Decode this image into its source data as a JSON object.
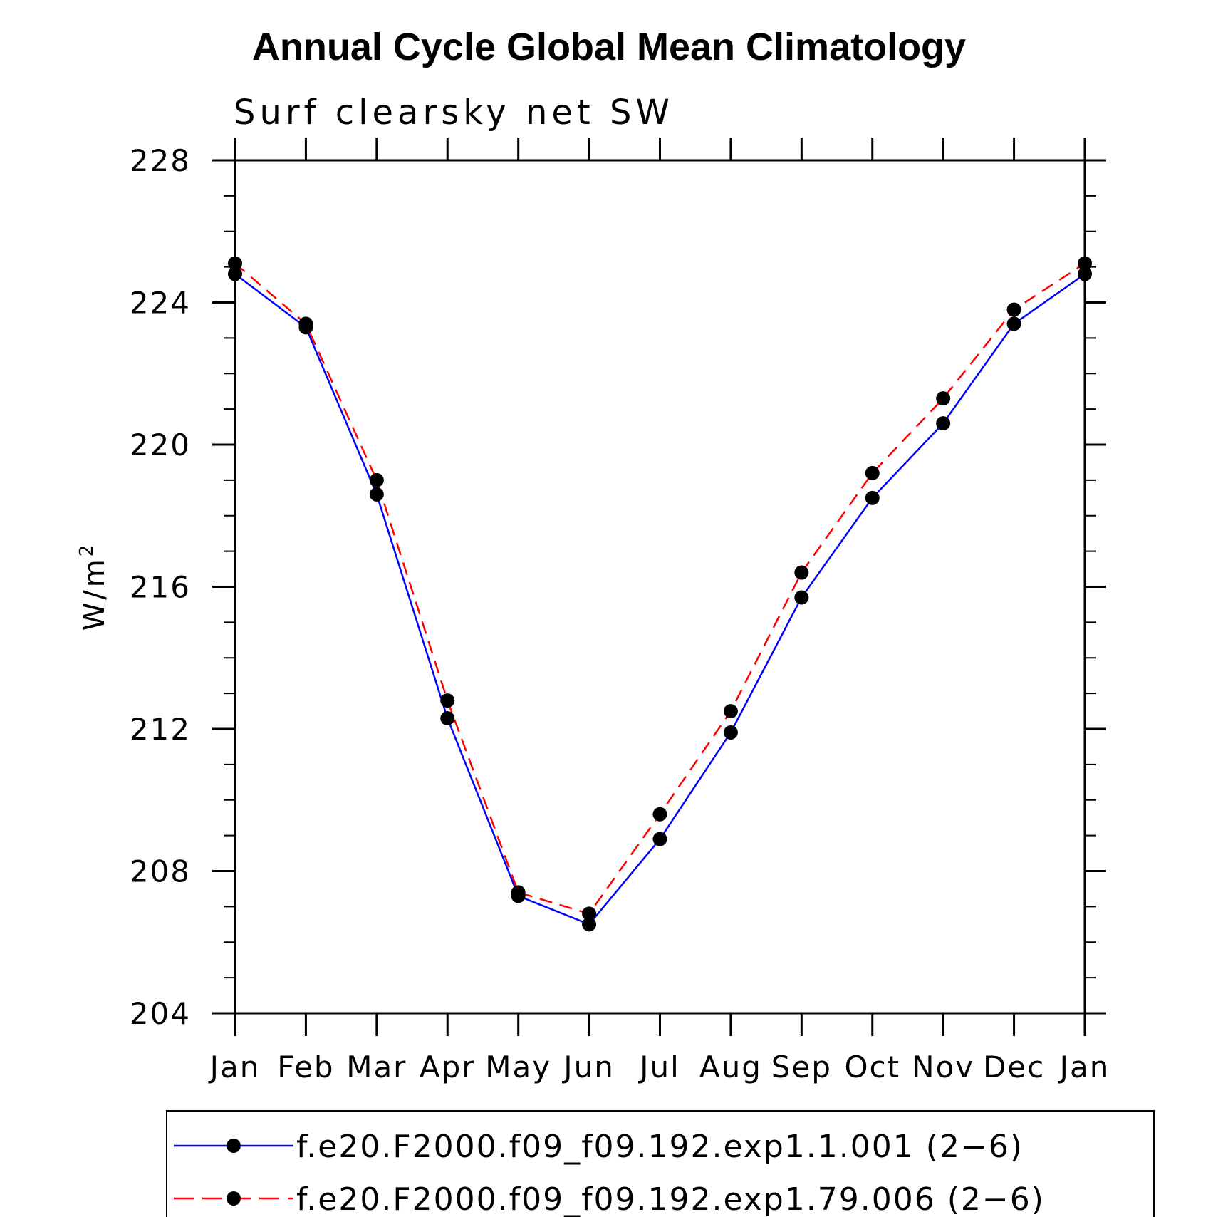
{
  "chart_data": {
    "type": "line",
    "title": "Annual Cycle Global Mean Climatology",
    "subtitle": "Surf clearsky net SW",
    "xlabel": "",
    "ylabel": "W/m",
    "ylabel_superscript": "2",
    "categories": [
      "Jan",
      "Feb",
      "Mar",
      "Apr",
      "May",
      "Jun",
      "Jul",
      "Aug",
      "Sep",
      "Oct",
      "Nov",
      "Dec",
      "Jan"
    ],
    "ylim": [
      204,
      228
    ],
    "yticks": [
      "204",
      "208",
      "212",
      "216",
      "220",
      "224",
      "228"
    ],
    "series": [
      {
        "name": "f.e20.F2000.f09_f09.192.exp1.1.001 (2−6)",
        "color": "#0000ff",
        "line_style": "solid",
        "marker": "filled-circle",
        "values": [
          224.8,
          223.3,
          218.6,
          212.3,
          207.3,
          206.5,
          208.9,
          211.9,
          215.7,
          218.5,
          220.6,
          223.4,
          224.8
        ]
      },
      {
        "name": "f.e20.F2000.f09_f09.192.exp1.79.006 (2−6)",
        "color": "#ff0000",
        "line_style": "dashed",
        "marker": "filled-circle",
        "values": [
          225.1,
          223.4,
          219.0,
          212.8,
          207.4,
          206.8,
          209.6,
          212.5,
          216.4,
          219.2,
          221.3,
          223.8,
          225.1
        ]
      }
    ],
    "legend_position": "bottom"
  }
}
